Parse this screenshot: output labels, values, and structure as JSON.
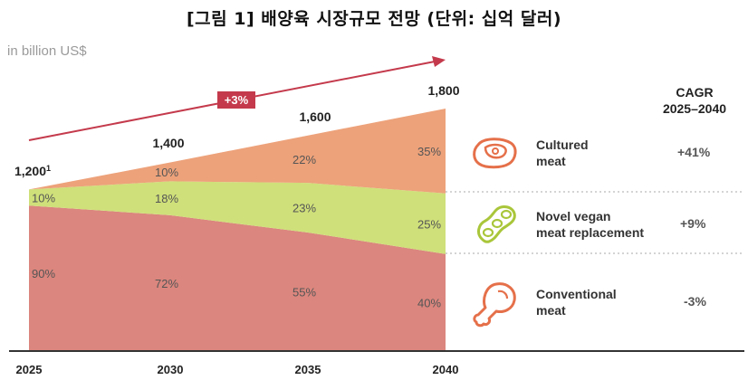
{
  "page": {
    "title": "[그림 1] 배양육 시장규모 전망 (단위: 십억 달러)"
  },
  "chart_data": {
    "type": "area",
    "stacked": true,
    "unit_label": "in billion US$",
    "categories": [
      "2025",
      "2030",
      "2035",
      "2040"
    ],
    "totals": [
      1200,
      1400,
      1600,
      1800
    ],
    "total_labels": [
      "1,200",
      "1,400",
      "1,600",
      "1,800"
    ],
    "total_footnote": "1",
    "growth_badge": "+3%",
    "series": [
      {
        "name": "Conventional meat",
        "legend_lines": [
          "Conventional",
          "meat"
        ],
        "cagr": "-3%",
        "shares": [
          90,
          72,
          55,
          40
        ],
        "share_labels": [
          "90%",
          "72%",
          "55%",
          "40%"
        ],
        "color": "#db867e"
      },
      {
        "name": "Novel vegan meat replacement",
        "legend_lines": [
          "Novel vegan",
          "meat replacement"
        ],
        "cagr": "+9%",
        "shares": [
          10,
          18,
          23,
          25
        ],
        "share_labels": [
          "10%",
          "18%",
          "23%",
          "25%"
        ],
        "color": "#cfe07a"
      },
      {
        "name": "Cultured meat",
        "legend_lines": [
          "Cultured",
          "meat"
        ],
        "cagr": "+41%",
        "shares": [
          0,
          10,
          22,
          35
        ],
        "share_labels": [
          "",
          "10%",
          "22%",
          "35%"
        ],
        "color": "#eda27a"
      }
    ],
    "cagr_header": [
      "CAGR",
      "2025–2040"
    ],
    "arrow_color": "#c43a4c",
    "legend_icon_color": "#e5704a",
    "legend_icon_color_vegan": "#a9c63a"
  }
}
